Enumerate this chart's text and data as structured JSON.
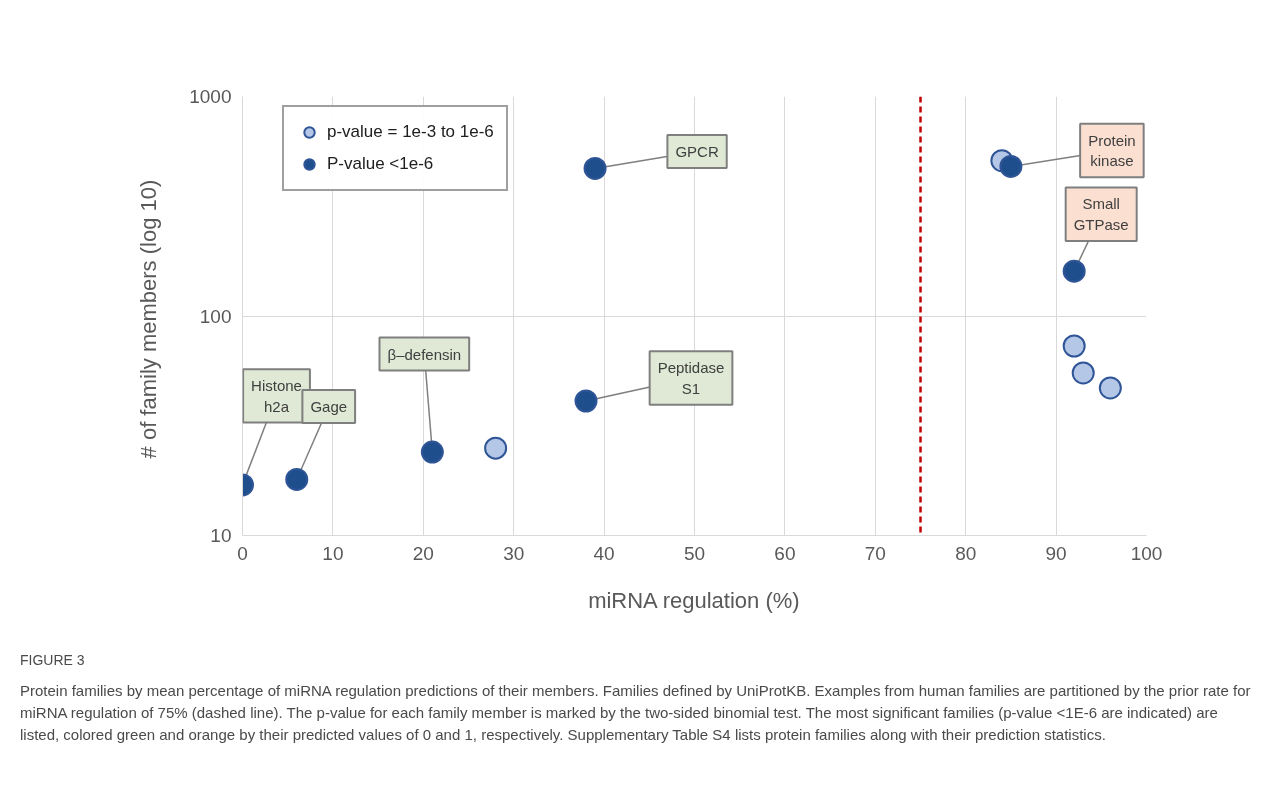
{
  "chart_data": {
    "type": "scatter",
    "xlabel": "miRNA regulation (%)",
    "ylabel": "# of family members  (log 10)",
    "series": [
      {
        "name": "p-value = 1e-3 to 1e-6",
        "color": "#b4c7e7",
        "x": [
          28,
          84,
          92,
          93,
          96
        ],
        "values": [
          25,
          510,
          73,
          55,
          47
        ]
      },
      {
        "name": "P-value <1e-6",
        "color": "#1f4e8c",
        "x": [
          0,
          6,
          21,
          38,
          39,
          85,
          92
        ],
        "values": [
          17,
          18,
          24,
          41,
          470,
          480,
          160
        ]
      }
    ],
    "xlim": [
      0,
      100
    ],
    "xticks": [
      0,
      10,
      20,
      30,
      40,
      50,
      60,
      70,
      80,
      90,
      100
    ],
    "ylim": [
      10,
      1000
    ],
    "yticks": [
      10,
      100,
      1000
    ],
    "log": true,
    "grid": true,
    "legend": "top left",
    "marker": "circle",
    "ref_lines": [
      {
        "axis": "x",
        "value": 75,
        "color": "#c00000",
        "line_style": "dashed"
      }
    ],
    "annotations": [
      {
        "text": "Histone h2a",
        "x": 0,
        "y": 17
      },
      {
        "text": "Gage",
        "x": 6,
        "y": 18
      },
      {
        "text": "β–defensin",
        "x": 21,
        "y": 24
      },
      {
        "text": "GPCR",
        "x": 39,
        "y": 470
      },
      {
        "text": "Peptidase S1",
        "x": 38,
        "y": 41
      },
      {
        "text": "Protein kinase",
        "x": 85,
        "y": 480
      },
      {
        "text": "Small GTPase",
        "x": 92,
        "y": 160
      },
      "FIGURE 3",
      "Protein families by mean percentage of miRNA regulation predictions of their members. Families defined by UniProtKB. Examples from human families are partitioned by the prior rate for miRNA regulation of 75% (dashed line). The p-value for each family member is marked by the two-sided binomial test. The most significant families (p-value <1E-6 are indicated) are listed, colored green and orange by their predicted values of 0 and 1, respectively. Supplementary Table S4 lists protein families along with their prediction statistics."
    ]
  }
}
